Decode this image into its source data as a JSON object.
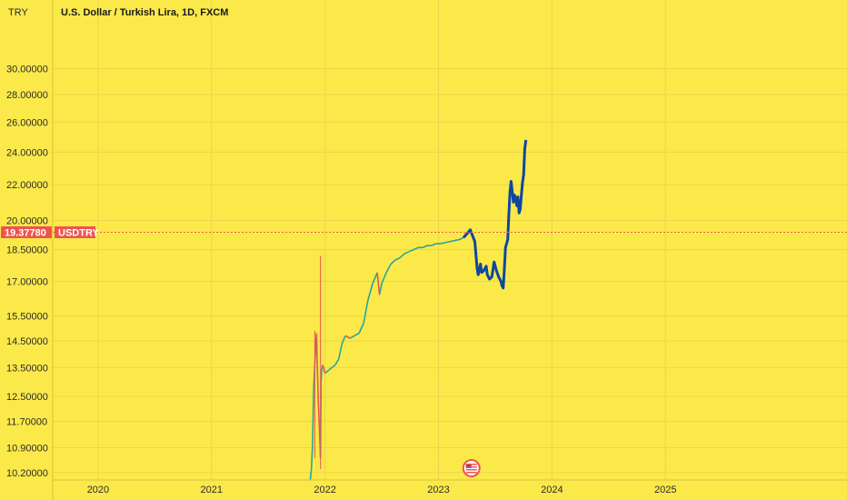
{
  "header": {
    "currency": "TRY",
    "title": "U.S. Dollar / Turkish Lira, 1D, FXCM"
  },
  "price_label": {
    "value": "19.37780",
    "symbol": "USDTRY",
    "color": "#ef5350"
  },
  "colors": {
    "background": "#fbe94a",
    "grid": "#e9d64a",
    "line": "#0d47a1",
    "candle_up": "#26a69a",
    "candle_down": "#ef5350"
  },
  "icons": {
    "marker": "us-flag-icon"
  },
  "chart_data": {
    "type": "line",
    "title": "U.S. Dollar / Turkish Lira, 1D, FXCM",
    "xlabel": "",
    "ylabel": "",
    "y_scale": "log",
    "y_ticks": [
      "30.00000",
      "28.00000",
      "26.00000",
      "24.00000",
      "22.00000",
      "20.00000",
      "18.50000",
      "17.00000",
      "15.50000",
      "14.50000",
      "13.50000",
      "12.50000",
      "11.70000",
      "10.90000",
      "10.20000"
    ],
    "x_ticks": [
      "2020",
      "2021",
      "2022",
      "2023",
      "2024",
      "2025"
    ],
    "xlim": [
      2019.6,
      2026.6
    ],
    "ylim": [
      10.0,
      33.5
    ],
    "current_price": 19.3778,
    "grid": true,
    "legend": "none",
    "series": [
      {
        "type": "candles",
        "points": [
          [
            2021.87,
            10.0
          ],
          [
            2021.88,
            10.3
          ],
          [
            2021.89,
            11.0
          ],
          [
            2021.9,
            12.8
          ],
          [
            2021.91,
            13.6
          ],
          [
            2021.92,
            14.5
          ],
          [
            2021.925,
            14.8
          ],
          [
            2021.93,
            13.8
          ],
          [
            2021.94,
            12.4
          ],
          [
            2021.95,
            11.5
          ],
          [
            2021.96,
            10.6
          ],
          [
            2021.965,
            13.0
          ],
          [
            2021.97,
            13.4
          ],
          [
            2021.98,
            13.6
          ],
          [
            2022.0,
            13.3
          ],
          [
            2022.03,
            13.4
          ],
          [
            2022.06,
            13.5
          ],
          [
            2022.09,
            13.6
          ],
          [
            2022.12,
            13.8
          ],
          [
            2022.15,
            14.4
          ],
          [
            2022.18,
            14.7
          ],
          [
            2022.22,
            14.6
          ],
          [
            2022.26,
            14.7
          ],
          [
            2022.3,
            14.8
          ],
          [
            2022.34,
            15.2
          ],
          [
            2022.38,
            16.2
          ],
          [
            2022.42,
            16.9
          ],
          [
            2022.46,
            17.4
          ],
          [
            2022.48,
            16.4
          ],
          [
            2022.5,
            16.9
          ],
          [
            2022.54,
            17.4
          ],
          [
            2022.58,
            17.8
          ],
          [
            2022.62,
            18.0
          ],
          [
            2022.66,
            18.1
          ],
          [
            2022.7,
            18.3
          ],
          [
            2022.74,
            18.4
          ],
          [
            2022.78,
            18.5
          ],
          [
            2022.82,
            18.6
          ],
          [
            2022.86,
            18.6
          ],
          [
            2022.9,
            18.7
          ],
          [
            2022.94,
            18.7
          ],
          [
            2022.98,
            18.8
          ],
          [
            2023.02,
            18.8
          ],
          [
            2023.06,
            18.85
          ],
          [
            2023.1,
            18.9
          ],
          [
            2023.14,
            18.95
          ],
          [
            2023.18,
            19.0
          ],
          [
            2023.22,
            19.1
          ]
        ]
      },
      {
        "type": "line",
        "points": [
          [
            2023.22,
            19.1
          ],
          [
            2023.25,
            19.3
          ],
          [
            2023.28,
            19.5
          ],
          [
            2023.3,
            19.2
          ],
          [
            2023.32,
            18.9
          ],
          [
            2023.34,
            17.6
          ],
          [
            2023.35,
            17.3
          ],
          [
            2023.37,
            17.8
          ],
          [
            2023.38,
            17.4
          ],
          [
            2023.4,
            17.5
          ],
          [
            2023.42,
            17.7
          ],
          [
            2023.43,
            17.3
          ],
          [
            2023.45,
            17.1
          ],
          [
            2023.47,
            17.2
          ],
          [
            2023.49,
            17.9
          ],
          [
            2023.51,
            17.5
          ],
          [
            2023.53,
            17.2
          ],
          [
            2023.55,
            17.0
          ],
          [
            2023.56,
            16.8
          ],
          [
            2023.57,
            16.7
          ],
          [
            2023.58,
            17.5
          ],
          [
            2023.59,
            18.6
          ],
          [
            2023.61,
            19.0
          ],
          [
            2023.62,
            20.3
          ],
          [
            2023.63,
            21.6
          ],
          [
            2023.64,
            22.2
          ],
          [
            2023.65,
            21.6
          ],
          [
            2023.66,
            21.0
          ],
          [
            2023.67,
            21.4
          ],
          [
            2023.68,
            21.2
          ],
          [
            2023.69,
            20.8
          ],
          [
            2023.7,
            21.3
          ],
          [
            2023.71,
            20.4
          ],
          [
            2023.72,
            20.6
          ],
          [
            2023.73,
            21.4
          ],
          [
            2023.74,
            22.1
          ],
          [
            2023.75,
            22.6
          ],
          [
            2023.76,
            24.2
          ],
          [
            2023.77,
            24.8
          ]
        ]
      }
    ],
    "marker": {
      "x": 2023.29
    }
  }
}
